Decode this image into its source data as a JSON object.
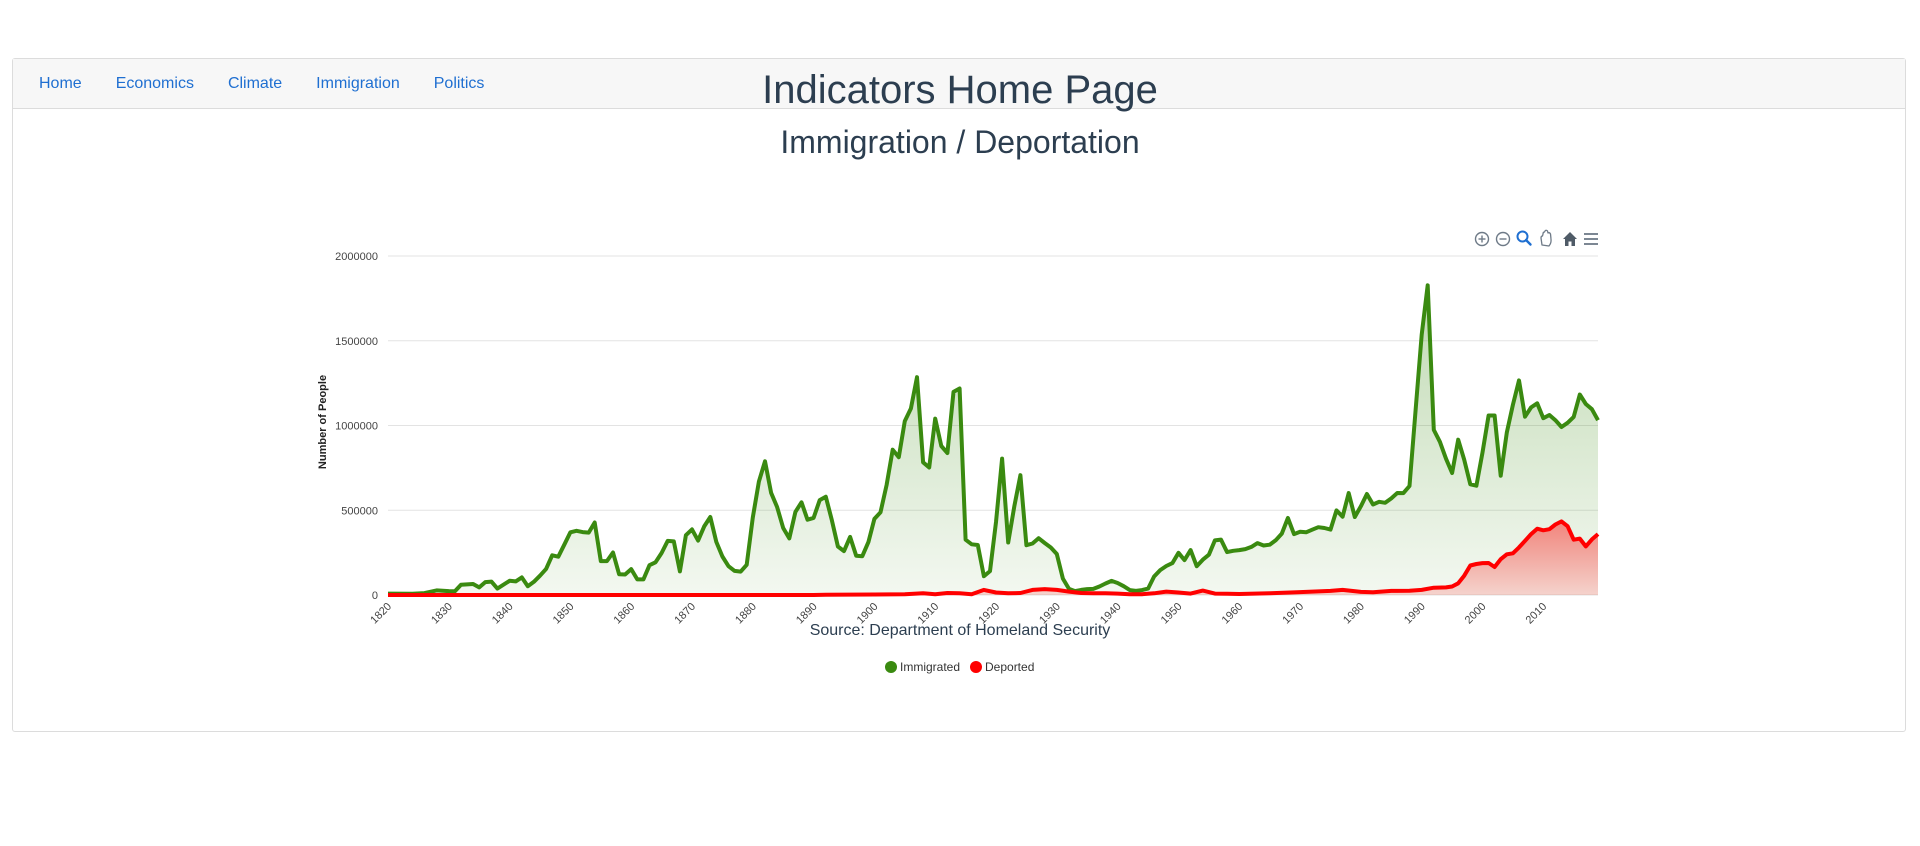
{
  "nav": {
    "items": [
      {
        "label": "Home"
      },
      {
        "label": "Economics"
      },
      {
        "label": "Climate"
      },
      {
        "label": "Immigration"
      },
      {
        "label": "Politics"
      }
    ]
  },
  "page": {
    "title": "Indicators Home Page",
    "source": "Source: Department of Homeland Security"
  },
  "toolbar": {
    "icons": [
      "zoom-in-icon",
      "zoom-out-icon",
      "selection-zoom-icon",
      "pan-hand-icon",
      "reset-home-icon",
      "menu-icon"
    ]
  },
  "colors": {
    "immigrated": "#3a8a10",
    "deported": "#ff0000",
    "link": "#1f6fd1",
    "text": "#2c3e50"
  },
  "chart_data": {
    "type": "area",
    "title": "Immigration / Deportation",
    "ylabel": "Number of People",
    "xlabel": "",
    "ylim": [
      0,
      2000000
    ],
    "xlim": [
      1820,
      2019
    ],
    "y_ticks": [
      0,
      500000,
      1000000,
      1500000,
      2000000
    ],
    "x_ticks": [
      1820,
      1830,
      1840,
      1850,
      1860,
      1870,
      1880,
      1890,
      1900,
      1910,
      1920,
      1930,
      1940,
      1950,
      1960,
      1970,
      1980,
      1990,
      2000,
      2010
    ],
    "grid": true,
    "legend_position": "bottom-center",
    "series": [
      {
        "name": "Immigrated",
        "points": [
          [
            1820,
            8000
          ],
          [
            1824,
            7000
          ],
          [
            1826,
            11000
          ],
          [
            1828,
            27000
          ],
          [
            1830,
            23000
          ],
          [
            1831,
            22000
          ],
          [
            1832,
            60000
          ],
          [
            1834,
            65000
          ],
          [
            1835,
            45000
          ],
          [
            1836,
            76000
          ],
          [
            1837,
            79000
          ],
          [
            1838,
            38000
          ],
          [
            1840,
            84000
          ],
          [
            1841,
            80000
          ],
          [
            1842,
            104000
          ],
          [
            1843,
            52000
          ],
          [
            1844,
            78000
          ],
          [
            1845,
            114000
          ],
          [
            1846,
            154000
          ],
          [
            1847,
            234000
          ],
          [
            1848,
            226000
          ],
          [
            1849,
            297000
          ],
          [
            1850,
            370000
          ],
          [
            1851,
            379000
          ],
          [
            1852,
            371000
          ],
          [
            1853,
            368000
          ],
          [
            1854,
            428000
          ],
          [
            1855,
            200000
          ],
          [
            1856,
            200000
          ],
          [
            1857,
            251000
          ],
          [
            1858,
            123000
          ],
          [
            1859,
            121000
          ],
          [
            1860,
            153000
          ],
          [
            1861,
            92000
          ],
          [
            1862,
            92000
          ],
          [
            1863,
            176000
          ],
          [
            1864,
            193000
          ],
          [
            1865,
            248000
          ],
          [
            1866,
            319000
          ],
          [
            1867,
            316000
          ],
          [
            1868,
            139000
          ],
          [
            1869,
            353000
          ],
          [
            1870,
            387000
          ],
          [
            1871,
            321000
          ],
          [
            1872,
            405000
          ],
          [
            1873,
            460000
          ],
          [
            1874,
            313000
          ],
          [
            1875,
            227000
          ],
          [
            1876,
            170000
          ],
          [
            1877,
            142000
          ],
          [
            1878,
            138000
          ],
          [
            1879,
            178000
          ],
          [
            1880,
            457000
          ],
          [
            1881,
            669000
          ],
          [
            1882,
            789000
          ],
          [
            1883,
            603000
          ],
          [
            1884,
            519000
          ],
          [
            1885,
            395000
          ],
          [
            1886,
            334000
          ],
          [
            1887,
            490000
          ],
          [
            1888,
            547000
          ],
          [
            1889,
            444000
          ],
          [
            1890,
            455000
          ],
          [
            1891,
            560000
          ],
          [
            1892,
            580000
          ],
          [
            1893,
            440000
          ],
          [
            1894,
            286000
          ],
          [
            1895,
            259000
          ],
          [
            1896,
            343000
          ],
          [
            1897,
            231000
          ],
          [
            1898,
            229000
          ],
          [
            1899,
            312000
          ],
          [
            1900,
            449000
          ],
          [
            1901,
            488000
          ],
          [
            1902,
            649000
          ],
          [
            1903,
            857000
          ],
          [
            1904,
            813000
          ],
          [
            1905,
            1026000
          ],
          [
            1906,
            1100000
          ],
          [
            1907,
            1285000
          ],
          [
            1908,
            783000
          ],
          [
            1909,
            752000
          ],
          [
            1910,
            1041000
          ],
          [
            1911,
            879000
          ],
          [
            1912,
            838000
          ],
          [
            1913,
            1198000
          ],
          [
            1914,
            1218000
          ],
          [
            1915,
            326000
          ],
          [
            1916,
            299000
          ],
          [
            1917,
            295000
          ],
          [
            1918,
            111000
          ],
          [
            1919,
            141000
          ],
          [
            1920,
            430000
          ],
          [
            1921,
            805000
          ],
          [
            1922,
            310000
          ],
          [
            1923,
            523000
          ],
          [
            1924,
            707000
          ],
          [
            1925,
            294000
          ],
          [
            1926,
            304000
          ],
          [
            1927,
            335000
          ],
          [
            1928,
            307000
          ],
          [
            1929,
            280000
          ],
          [
            1930,
            242000
          ],
          [
            1931,
            97000
          ],
          [
            1932,
            36000
          ],
          [
            1933,
            23000
          ],
          [
            1934,
            30000
          ],
          [
            1935,
            35000
          ],
          [
            1936,
            36000
          ],
          [
            1937,
            50000
          ],
          [
            1938,
            68000
          ],
          [
            1939,
            83000
          ],
          [
            1940,
            71000
          ],
          [
            1941,
            52000
          ],
          [
            1942,
            29000
          ],
          [
            1943,
            24000
          ],
          [
            1944,
            29000
          ],
          [
            1945,
            38000
          ],
          [
            1946,
            109000
          ],
          [
            1947,
            147000
          ],
          [
            1948,
            171000
          ],
          [
            1949,
            188000
          ],
          [
            1950,
            249000
          ],
          [
            1951,
            206000
          ],
          [
            1952,
            265000
          ],
          [
            1953,
            170000
          ],
          [
            1954,
            208000
          ],
          [
            1955,
            238000
          ],
          [
            1956,
            322000
          ],
          [
            1957,
            327000
          ],
          [
            1958,
            253000
          ],
          [
            1959,
            261000
          ],
          [
            1960,
            265000
          ],
          [
            1961,
            271000
          ],
          [
            1962,
            284000
          ],
          [
            1963,
            306000
          ],
          [
            1964,
            292000
          ],
          [
            1965,
            297000
          ],
          [
            1966,
            323000
          ],
          [
            1967,
            362000
          ],
          [
            1968,
            454000
          ],
          [
            1969,
            359000
          ],
          [
            1970,
            373000
          ],
          [
            1971,
            370000
          ],
          [
            1972,
            385000
          ],
          [
            1973,
            400000
          ],
          [
            1974,
            395000
          ],
          [
            1975,
            386000
          ],
          [
            1976,
            499000
          ],
          [
            1977,
            462000
          ],
          [
            1978,
            601000
          ],
          [
            1979,
            460000
          ],
          [
            1980,
            524000
          ],
          [
            1981,
            596000
          ],
          [
            1982,
            534000
          ],
          [
            1983,
            550000
          ],
          [
            1984,
            544000
          ],
          [
            1985,
            570000
          ],
          [
            1986,
            602000
          ],
          [
            1987,
            601000
          ],
          [
            1988,
            643000
          ],
          [
            1989,
            1091000
          ],
          [
            1990,
            1536000
          ],
          [
            1991,
            1827000
          ],
          [
            1992,
            974000
          ],
          [
            1993,
            904000
          ],
          [
            1994,
            804000
          ],
          [
            1995,
            720000
          ],
          [
            1996,
            916000
          ],
          [
            1997,
            798000
          ],
          [
            1998,
            653000
          ],
          [
            1999,
            645000
          ],
          [
            2000,
            841000
          ],
          [
            2001,
            1059000
          ],
          [
            2002,
            1059000
          ],
          [
            2003,
            704000
          ],
          [
            2004,
            958000
          ],
          [
            2005,
            1122000
          ],
          [
            2006,
            1266000
          ],
          [
            2007,
            1052000
          ],
          [
            2008,
            1107000
          ],
          [
            2009,
            1131000
          ],
          [
            2010,
            1043000
          ],
          [
            2011,
            1062000
          ],
          [
            2012,
            1031000
          ],
          [
            2013,
            991000
          ],
          [
            2014,
            1016000
          ],
          [
            2015,
            1051000
          ],
          [
            2016,
            1183000
          ],
          [
            2017,
            1127000
          ],
          [
            2018,
            1096000
          ],
          [
            2019,
            1031000
          ]
        ]
      },
      {
        "name": "Deported",
        "points": [
          [
            1820,
            0
          ],
          [
            1890,
            0
          ],
          [
            1892,
            2000
          ],
          [
            1900,
            3000
          ],
          [
            1905,
            5000
          ],
          [
            1908,
            10000
          ],
          [
            1910,
            5000
          ],
          [
            1912,
            12000
          ],
          [
            1914,
            10000
          ],
          [
            1916,
            5000
          ],
          [
            1918,
            30000
          ],
          [
            1920,
            15000
          ],
          [
            1922,
            10000
          ],
          [
            1924,
            12000
          ],
          [
            1926,
            30000
          ],
          [
            1928,
            35000
          ],
          [
            1930,
            30000
          ],
          [
            1932,
            20000
          ],
          [
            1934,
            12000
          ],
          [
            1936,
            10000
          ],
          [
            1938,
            10000
          ],
          [
            1940,
            8000
          ],
          [
            1942,
            5000
          ],
          [
            1944,
            5000
          ],
          [
            1946,
            10000
          ],
          [
            1948,
            20000
          ],
          [
            1950,
            15000
          ],
          [
            1952,
            8000
          ],
          [
            1954,
            26000
          ],
          [
            1956,
            8000
          ],
          [
            1958,
            7000
          ],
          [
            1960,
            6000
          ],
          [
            1965,
            10000
          ],
          [
            1970,
            17000
          ],
          [
            1975,
            24000
          ],
          [
            1977,
            30000
          ],
          [
            1980,
            18000
          ],
          [
            1982,
            16000
          ],
          [
            1985,
            24000
          ],
          [
            1988,
            25000
          ],
          [
            1990,
            30000
          ],
          [
            1992,
            43000
          ],
          [
            1994,
            45000
          ],
          [
            1995,
            50000
          ],
          [
            1996,
            69000
          ],
          [
            1997,
            114000
          ],
          [
            1998,
            174000
          ],
          [
            1999,
            183000
          ],
          [
            2000,
            188000
          ],
          [
            2001,
            189000
          ],
          [
            2002,
            165000
          ],
          [
            2003,
            211000
          ],
          [
            2004,
            240000
          ],
          [
            2005,
            246000
          ],
          [
            2006,
            281000
          ],
          [
            2007,
            319000
          ],
          [
            2008,
            359000
          ],
          [
            2009,
            391000
          ],
          [
            2010,
            382000
          ],
          [
            2011,
            388000
          ],
          [
            2012,
            416000
          ],
          [
            2013,
            434000
          ],
          [
            2014,
            406000
          ],
          [
            2015,
            326000
          ],
          [
            2016,
            333000
          ],
          [
            2017,
            287000
          ],
          [
            2018,
            328000
          ],
          [
            2019,
            359000
          ]
        ]
      }
    ]
  }
}
